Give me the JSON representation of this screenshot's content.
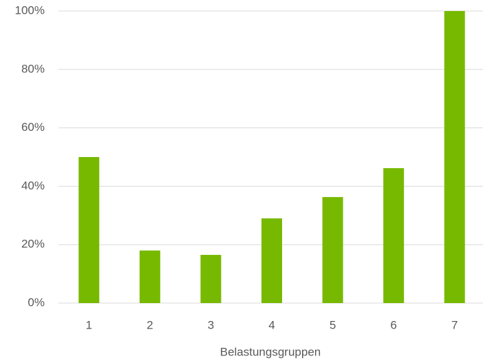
{
  "chart_data": {
    "type": "bar",
    "x_label": "Belastungsgruppen",
    "categories": [
      "1",
      "2",
      "3",
      "4",
      "5",
      "6",
      "7"
    ],
    "values": [
      50,
      18,
      16.5,
      29,
      36.3,
      46.2,
      100
    ],
    "color": "#77b900",
    "ylim": [
      0,
      100
    ],
    "yticks": [
      {
        "value": 0,
        "label": "0%"
      },
      {
        "value": 20,
        "label": "20%"
      },
      {
        "value": 40,
        "label": "40%"
      },
      {
        "value": 60,
        "label": "60%"
      },
      {
        "value": 80,
        "label": "80%"
      },
      {
        "value": 100,
        "label": "100%"
      }
    ],
    "grid": true
  }
}
